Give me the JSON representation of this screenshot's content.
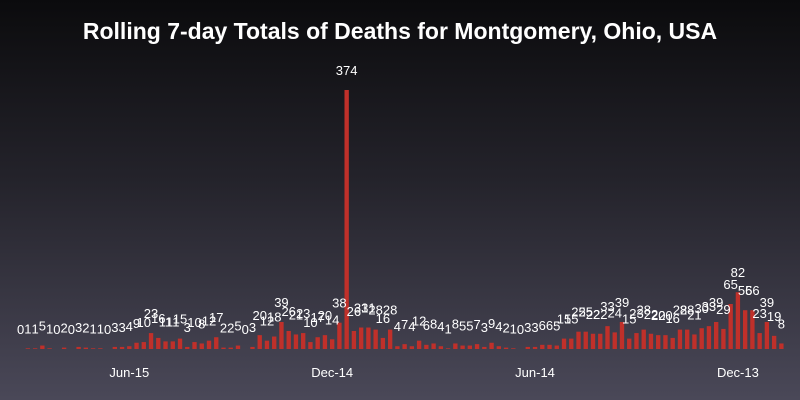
{
  "chart_data": {
    "type": "bar",
    "title": "Rolling 7-day Totals of Deaths for Montgomery, Ohio, USA",
    "xlabel": "",
    "ylabel": "",
    "bar_color": "#c0302a",
    "x_tick_labels": [
      "Jun-15",
      "Dec-14",
      "Jun-14",
      "Dec-13"
    ],
    "tick_positions": [
      15,
      43,
      71,
      99
    ],
    "values": [
      0,
      1,
      1,
      5,
      1,
      0,
      2,
      0,
      3,
      2,
      1,
      1,
      0,
      3,
      3,
      4,
      9,
      10,
      23,
      16,
      11,
      11,
      15,
      3,
      10,
      8,
      12,
      17,
      2,
      2,
      5,
      0,
      3,
      20,
      12,
      18,
      39,
      26,
      21,
      23,
      10,
      17,
      20,
      14,
      38,
      374,
      26,
      31,
      31,
      28,
      16,
      28,
      4,
      7,
      4,
      12,
      6,
      8,
      4,
      1,
      8,
      5,
      5,
      7,
      3,
      9,
      4,
      2,
      1,
      0,
      3,
      3,
      6,
      6,
      5,
      15,
      15,
      25,
      25,
      22,
      22,
      33,
      24,
      39,
      15,
      23,
      28,
      22,
      20,
      20,
      16,
      28,
      28,
      21,
      30,
      33,
      39,
      29,
      65,
      82,
      56,
      56,
      23,
      39,
      19,
      8
    ],
    "ylim": [
      0,
      374
    ]
  }
}
